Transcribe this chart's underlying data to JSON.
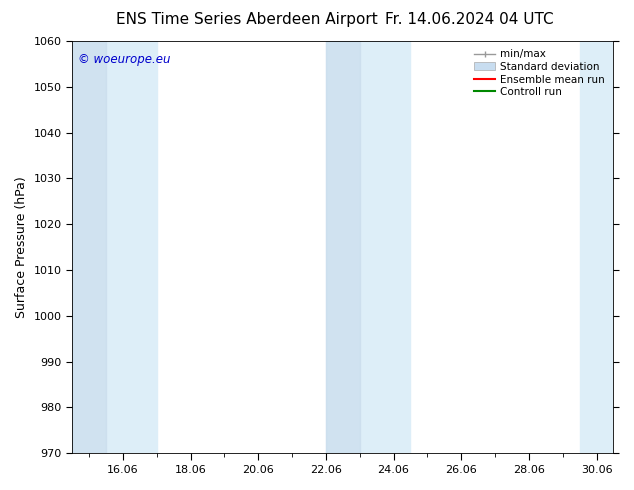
{
  "title_left": "ENS Time Series Aberdeen Airport",
  "title_right": "Fr. 14.06.2024 04 UTC",
  "ylabel": "Surface Pressure (hPa)",
  "ylim": [
    970,
    1060
  ],
  "yticks": [
    970,
    980,
    990,
    1000,
    1010,
    1020,
    1030,
    1040,
    1050,
    1060
  ],
  "xlim_start": 14.5,
  "xlim_end": 30.5,
  "xtick_labels": [
    "16.06",
    "18.06",
    "20.06",
    "22.06",
    "24.06",
    "26.06",
    "28.06",
    "30.06"
  ],
  "xtick_positions": [
    16.0,
    18.0,
    20.0,
    22.0,
    24.0,
    26.0,
    28.0,
    30.0
  ],
  "shaded_bands": [
    {
      "x_start": 14.5,
      "x_end": 15.5
    },
    {
      "x_start": 15.5,
      "x_end": 17.0
    },
    {
      "x_start": 22.0,
      "x_end": 23.0
    },
    {
      "x_start": 23.0,
      "x_end": 24.5
    },
    {
      "x_start": 29.5,
      "x_end": 30.5
    }
  ],
  "shaded_color_dark": "#c8ddf0",
  "shaded_color_light": "#ddeeff",
  "watermark_text": "© woeurope.eu",
  "watermark_color": "#0000cc",
  "background_color": "#ffffff",
  "legend_items": [
    {
      "label": "min/max",
      "color": "#999999",
      "lw": 1.0,
      "style": "minmax"
    },
    {
      "label": "Standard deviation",
      "color": "#c8ddf0",
      "lw": 8,
      "style": "band"
    },
    {
      "label": "Ensemble mean run",
      "color": "#ff0000",
      "lw": 1.5,
      "style": "line"
    },
    {
      "label": "Controll run",
      "color": "#008800",
      "lw": 1.5,
      "style": "line"
    }
  ],
  "title_fontsize": 11,
  "axis_fontsize": 9,
  "tick_fontsize": 8,
  "fig_width": 6.34,
  "fig_height": 4.9,
  "dpi": 100
}
